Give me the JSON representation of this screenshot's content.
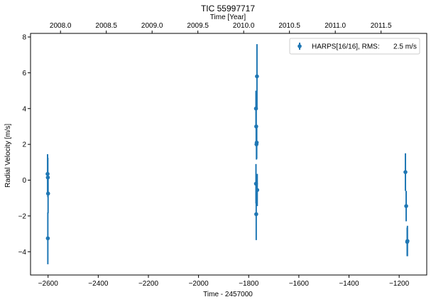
{
  "chart_data": {
    "type": "scatter",
    "title": "TIC 55997717",
    "xlabel": "Time - 2457000",
    "ylabel": "Radial Velocity [m/s]",
    "top_xlabel": "Time [Year]",
    "xlim": [
      -2670,
      -1090
    ],
    "ylim": [
      -5.3,
      8.2
    ],
    "x_ticks": [
      -2600,
      -2400,
      -2200,
      -2000,
      -1800,
      -1600,
      -1400,
      -1200
    ],
    "x_tick_labels": [
      "−2600",
      "−2400",
      "−2200",
      "−2000",
      "−1800",
      "−1600",
      "−1400",
      "−1200"
    ],
    "y_ticks": [
      -4,
      -2,
      0,
      2,
      4,
      6,
      8
    ],
    "y_tick_labels": [
      "−4",
      "−2",
      "0",
      "2",
      "4",
      "6",
      "8"
    ],
    "top_ticks": [
      2008.0,
      2008.5,
      2009.0,
      2009.5,
      2010.0,
      2010.5,
      2011.0,
      2011.5
    ],
    "top_tick_labels": [
      "2008.0",
      "2008.5",
      "2009.0",
      "2009.5",
      "2010.0",
      "2010.5",
      "2011.0",
      "2011.5"
    ],
    "grid": false,
    "legend_position": "top-right",
    "series": [
      {
        "name": "HARPS[16/16], RMS:       2.5 m/s",
        "color": "#1f77b4",
        "x": [
          -2602,
          -2601,
          -2600,
          -2601,
          -1771,
          -1770,
          -1769,
          -1771,
          -1768,
          -1767,
          -1770,
          -1766,
          -1175,
          -1172,
          -1167,
          -1168
        ],
        "y": [
          0.35,
          0.15,
          -0.75,
          -3.25,
          4.0,
          3.0,
          2.0,
          -0.2,
          2.1,
          5.8,
          -1.9,
          -0.55,
          0.45,
          -1.45,
          -3.4,
          -3.45
        ],
        "yerr": [
          1.1,
          1.1,
          1.1,
          1.45,
          1.0,
          1.0,
          0.85,
          1.1,
          0.9,
          1.8,
          1.45,
          0.9,
          1.05,
          0.85,
          0.85,
          0.8
        ]
      }
    ]
  }
}
